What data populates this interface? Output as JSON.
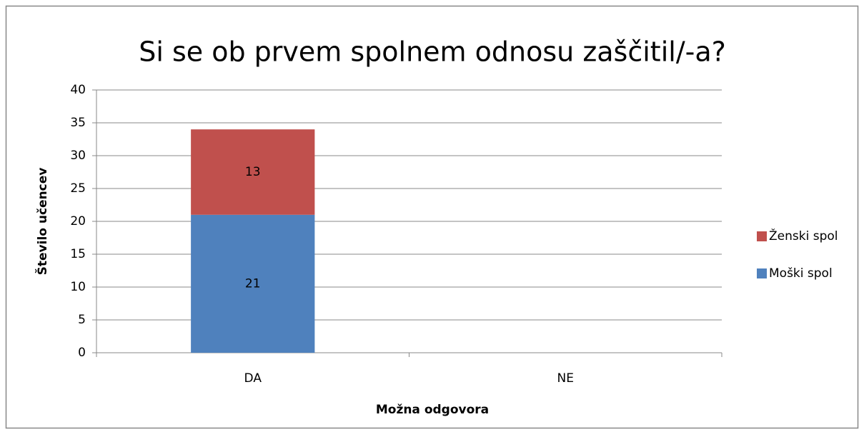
{
  "chart_data": {
    "type": "stacked_bar",
    "title": "Si se ob prvem spolnem odnosu zaščitil/-a?",
    "x_label": "Možna odgovora",
    "y_label": "Število učencev",
    "categories": [
      "DA",
      "NE"
    ],
    "series": [
      {
        "name": "Moški spol",
        "color": "#4f81bd",
        "values": [
          21,
          null
        ]
      },
      {
        "name": "Ženski spol",
        "color": "#c0504d",
        "values": [
          13,
          null
        ]
      }
    ],
    "ylim": [
      0,
      40
    ],
    "yticks": [
      0,
      5,
      10,
      15,
      20,
      25,
      30,
      35,
      40
    ],
    "grid": true,
    "legend": "right"
  }
}
